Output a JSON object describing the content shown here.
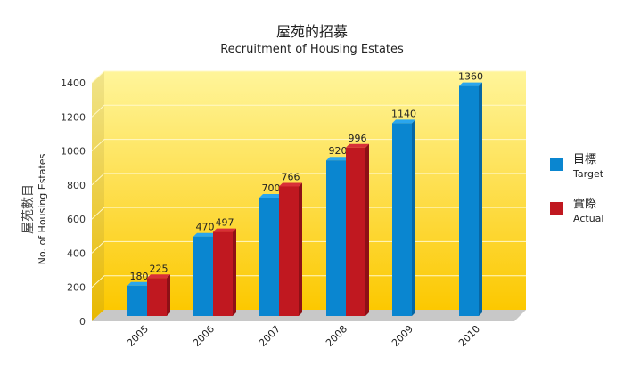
{
  "chart_data": {
    "type": "bar",
    "title": "屋苑的招募",
    "subtitle": "Recruitment of Housing Estates",
    "ylabel_zh": "屋苑數目",
    "ylabel": "No. of Housing Estates",
    "xlabel": "",
    "ylim": [
      0,
      1400
    ],
    "yticks": [
      0,
      200,
      400,
      600,
      800,
      1000,
      1200,
      1400
    ],
    "categories": [
      "2005",
      "2006",
      "2007",
      "2008",
      "2009",
      "2010"
    ],
    "series": [
      {
        "name_zh": "目標",
        "name": "Target",
        "color": "#0a86d0",
        "values": [
          180,
          470,
          700,
          920,
          1140,
          1360
        ]
      },
      {
        "name_zh": "實際",
        "name": "Actual",
        "color": "#c01820",
        "values": [
          225,
          497,
          766,
          996,
          null,
          null
        ]
      }
    ],
    "legend_position": "right",
    "grid": true
  }
}
